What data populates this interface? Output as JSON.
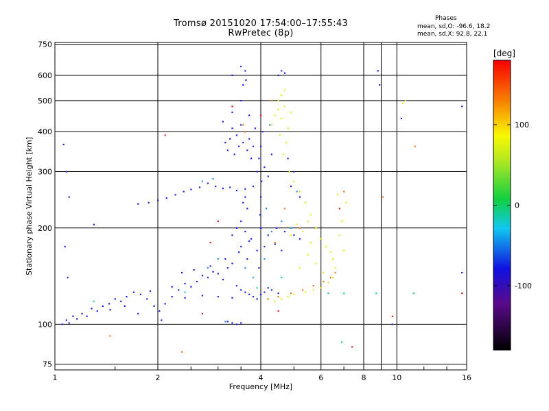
{
  "chart_data": {
    "type": "scatter",
    "title": "Tromsø 20151020 17:54:00–17:55:43",
    "subtitle": "RwPretec (8p)",
    "xlabel": "Frequency [MHz]",
    "ylabel": "Stationary phase Virtual Height [km]",
    "x_scale": "log",
    "y_scale": "log",
    "xlim": [
      1,
      16
    ],
    "ylim": [
      72,
      760
    ],
    "x_ticks": [
      1,
      2,
      4,
      6,
      8,
      10,
      16
    ],
    "x_minor": [
      9
    ],
    "y_ticks": [
      75,
      100,
      200,
      300,
      400,
      500,
      600,
      750
    ],
    "grid": true,
    "stats": {
      "title": "Phases",
      "o_line": "mean, sd,O: -96.6, 18.2",
      "x_line": "mean, sd,X:  92.8, 22.1"
    },
    "colorbar": {
      "unit": "[deg]",
      "range": [
        -180,
        180
      ],
      "ticks": [
        100,
        0,
        -100
      ],
      "tick_labels": [
        "100",
        "0",
        "-100"
      ]
    },
    "series": [
      {
        "phase": -100,
        "color": "#2020e0",
        "points": [
          [
            1.05,
            100
          ],
          [
            1.08,
            103
          ],
          [
            1.1,
            101
          ],
          [
            1.13,
            106
          ],
          [
            1.16,
            104
          ],
          [
            1.2,
            108
          ],
          [
            1.24,
            106
          ],
          [
            1.28,
            112
          ],
          [
            1.33,
            110
          ],
          [
            1.38,
            114
          ],
          [
            1.44,
            116
          ],
          [
            1.5,
            120
          ],
          [
            1.56,
            118
          ],
          [
            1.62,
            122
          ],
          [
            1.7,
            126
          ],
          [
            1.78,
            124
          ],
          [
            1.86,
            120
          ],
          [
            1.95,
            114
          ],
          [
            2.02,
            110
          ],
          [
            2.1,
            116
          ],
          [
            2.2,
            122
          ],
          [
            2.3,
            128
          ],
          [
            2.4,
            134
          ],
          [
            2.5,
            131
          ],
          [
            2.6,
            136
          ],
          [
            2.7,
            142
          ],
          [
            2.8,
            140
          ],
          [
            2.9,
            146
          ],
          [
            3.0,
            144
          ],
          [
            3.1,
            138
          ],
          [
            3.2,
            150
          ],
          [
            3.3,
            155
          ],
          [
            3.4,
            132
          ],
          [
            3.5,
            128
          ],
          [
            3.6,
            126
          ],
          [
            3.7,
            124
          ],
          [
            3.8,
            122
          ],
          [
            3.9,
            120
          ],
          [
            4.0,
            124
          ],
          [
            4.1,
            126
          ],
          [
            4.2,
            130
          ],
          [
            4.3,
            128
          ],
          [
            4.5,
            125
          ],
          [
            2.4,
            121
          ],
          [
            2.7,
            123
          ],
          [
            3.0,
            122
          ],
          [
            3.3,
            121
          ],
          [
            1.9,
            127
          ],
          [
            2.2,
            131
          ],
          [
            1.45,
            111
          ],
          [
            1.6,
            114
          ],
          [
            1.75,
            108
          ],
          [
            2.05,
            103
          ],
          [
            2.35,
            145
          ],
          [
            2.55,
            148
          ],
          [
            2.85,
            152
          ],
          [
            3.15,
            160
          ],
          [
            3.45,
            168
          ],
          [
            3.65,
            160
          ],
          [
            3.95,
            150
          ],
          [
            3.5,
            175
          ],
          [
            3.7,
            182
          ],
          [
            3.9,
            170
          ],
          [
            4.1,
            175
          ],
          [
            3.3,
            190
          ],
          [
            3.4,
            200
          ],
          [
            3.5,
            210
          ],
          [
            3.6,
            195
          ],
          [
            3.75,
            185
          ],
          [
            4.0,
            200
          ],
          [
            4.2,
            190
          ],
          [
            4.4,
            178
          ],
          [
            4.6,
            170
          ],
          [
            1.75,
            238
          ],
          [
            1.88,
            240
          ],
          [
            2.0,
            244
          ],
          [
            2.12,
            248
          ],
          [
            2.25,
            254
          ],
          [
            2.38,
            260
          ],
          [
            2.5,
            264
          ],
          [
            2.65,
            268
          ],
          [
            2.8,
            276
          ],
          [
            2.95,
            270
          ],
          [
            3.1,
            266
          ],
          [
            3.25,
            268
          ],
          [
            3.4,
            262
          ],
          [
            3.6,
            265
          ],
          [
            3.8,
            270
          ],
          [
            3.55,
            240
          ],
          [
            3.6,
            250
          ],
          [
            3.65,
            230
          ],
          [
            3.2,
            350
          ],
          [
            3.25,
            380
          ],
          [
            3.3,
            410
          ],
          [
            3.35,
            340
          ],
          [
            3.4,
            390
          ],
          [
            3.45,
            360
          ],
          [
            3.5,
            420
          ],
          [
            3.55,
            370
          ],
          [
            3.6,
            400
          ],
          [
            3.65,
            350
          ],
          [
            3.7,
            380
          ],
          [
            3.75,
            330
          ],
          [
            3.8,
            360
          ],
          [
            3.85,
            410
          ],
          [
            3.1,
            430
          ],
          [
            3.15,
            370
          ],
          [
            3.3,
            460
          ],
          [
            3.5,
            500
          ],
          [
            3.55,
            560
          ],
          [
            3.6,
            620
          ],
          [
            3.62,
            580
          ],
          [
            3.5,
            640
          ],
          [
            3.3,
            600
          ],
          [
            3.7,
            450
          ],
          [
            3.9,
            300
          ],
          [
            3.95,
            330
          ],
          [
            4.0,
            360
          ],
          [
            4.0,
            250
          ],
          [
            3.98,
            220
          ],
          [
            4.02,
            280
          ],
          [
            4.05,
            400
          ],
          [
            4.1,
            310
          ],
          [
            4.2,
            290
          ],
          [
            4.3,
            340
          ],
          [
            4.6,
            620
          ],
          [
            4.7,
            610
          ],
          [
            4.5,
            600
          ],
          [
            4.8,
            330
          ],
          [
            5.0,
            300
          ],
          [
            4.9,
            270
          ],
          [
            5.2,
            250
          ],
          [
            1.06,
            365
          ],
          [
            1.08,
            300
          ],
          [
            1.1,
            250
          ],
          [
            1.07,
            175
          ],
          [
            1.09,
            140
          ],
          [
            1.3,
            205
          ],
          [
            8.8,
            620
          ],
          [
            8.9,
            560
          ],
          [
            10.3,
            440
          ],
          [
            15.5,
            480
          ],
          [
            15.5,
            145
          ],
          [
            9.7,
            100
          ],
          [
            4.45,
            200
          ],
          [
            4.7,
            195
          ],
          [
            5.0,
            190
          ],
          [
            5.2,
            185
          ],
          [
            3.2,
            102
          ],
          [
            3.3,
            101
          ],
          [
            3.4,
            100
          ],
          [
            3.5,
            101
          ]
        ]
      },
      {
        "phase": -60,
        "color": "#2a8ce8",
        "points": [
          [
            2.7,
            280
          ],
          [
            2.9,
            285
          ],
          [
            3.0,
            160
          ],
          [
            3.6,
            150
          ],
          [
            3.8,
            140
          ],
          [
            4.1,
            160
          ],
          [
            4.3,
            195
          ],
          [
            4.6,
            210
          ],
          [
            4.9,
            200
          ],
          [
            5.1,
            260
          ],
          [
            3.15,
            102
          ],
          [
            2.8,
            150
          ],
          [
            4.15,
            230
          ],
          [
            4.25,
            420
          ]
        ]
      },
      {
        "phase": 20,
        "color": "#30c8a0",
        "points": [
          [
            1.3,
            118
          ],
          [
            2.4,
            126
          ],
          [
            3.9,
            130
          ],
          [
            4.6,
            140
          ],
          [
            6.3,
            125
          ],
          [
            7.0,
            125
          ],
          [
            11.2,
            125
          ],
          [
            8.7,
            125
          ],
          [
            6.9,
            88
          ]
        ]
      },
      {
        "phase": 100,
        "color": "#e8e820",
        "points": [
          [
            4.3,
            420
          ],
          [
            4.4,
            450
          ],
          [
            4.5,
            470
          ],
          [
            4.6,
            440
          ],
          [
            4.7,
            480
          ],
          [
            4.8,
            410
          ],
          [
            4.9,
            460
          ],
          [
            4.55,
            390
          ],
          [
            4.75,
            370
          ],
          [
            4.65,
            340
          ],
          [
            4.85,
            300
          ],
          [
            5.0,
            280
          ],
          [
            5.2,
            260
          ],
          [
            5.4,
            240
          ],
          [
            5.6,
            220
          ],
          [
            5.8,
            200
          ],
          [
            6.0,
            185
          ],
          [
            6.2,
            175
          ],
          [
            6.4,
            168
          ],
          [
            6.5,
            160
          ],
          [
            6.6,
            150
          ],
          [
            6.5,
            140
          ],
          [
            6.3,
            135
          ],
          [
            6.0,
            130
          ],
          [
            5.7,
            128
          ],
          [
            5.4,
            126
          ],
          [
            5.0,
            124
          ],
          [
            4.8,
            122
          ],
          [
            4.6,
            120
          ],
          [
            4.4,
            118
          ],
          [
            5.2,
            150
          ],
          [
            5.5,
            165
          ],
          [
            5.8,
            155
          ],
          [
            6.1,
            145
          ],
          [
            5.6,
            180
          ],
          [
            6.8,
            190
          ],
          [
            7.0,
            170
          ],
          [
            6.9,
            210
          ],
          [
            10.6,
            500
          ],
          [
            10.4,
            490
          ],
          [
            4.9,
            190
          ],
          [
            5.1,
            205
          ],
          [
            5.3,
            195
          ],
          [
            5.5,
            210
          ],
          [
            7.1,
            240
          ],
          [
            6.7,
            255
          ],
          [
            4.6,
            520
          ],
          [
            4.7,
            540
          ],
          [
            4.5,
            500
          ]
        ]
      },
      {
        "phase": 150,
        "color": "#f07820",
        "points": [
          [
            4.2,
            120
          ],
          [
            4.5,
            122
          ],
          [
            4.9,
            125
          ],
          [
            5.3,
            128
          ],
          [
            5.7,
            132
          ],
          [
            6.1,
            136
          ],
          [
            6.4,
            140
          ],
          [
            6.6,
            145
          ],
          [
            4.4,
            180
          ],
          [
            4.7,
            230
          ],
          [
            5.2,
            200
          ],
          [
            3.55,
            420
          ],
          [
            3.6,
            400
          ],
          [
            1.45,
            92
          ],
          [
            2.35,
            82
          ],
          [
            9.1,
            250
          ],
          [
            11.3,
            360
          ],
          [
            4.3,
            500
          ],
          [
            7.0,
            260
          ]
        ]
      },
      {
        "phase": 175,
        "color": "#e02020",
        "points": [
          [
            2.85,
            180
          ],
          [
            3.0,
            210
          ],
          [
            4.0,
            450
          ],
          [
            2.1,
            390
          ],
          [
            3.3,
            480
          ],
          [
            9.7,
            106
          ],
          [
            15.5,
            125
          ],
          [
            7.4,
            85
          ],
          [
            6.8,
            230
          ],
          [
            4.5,
            110
          ],
          [
            2.7,
            108
          ]
        ]
      }
    ]
  }
}
